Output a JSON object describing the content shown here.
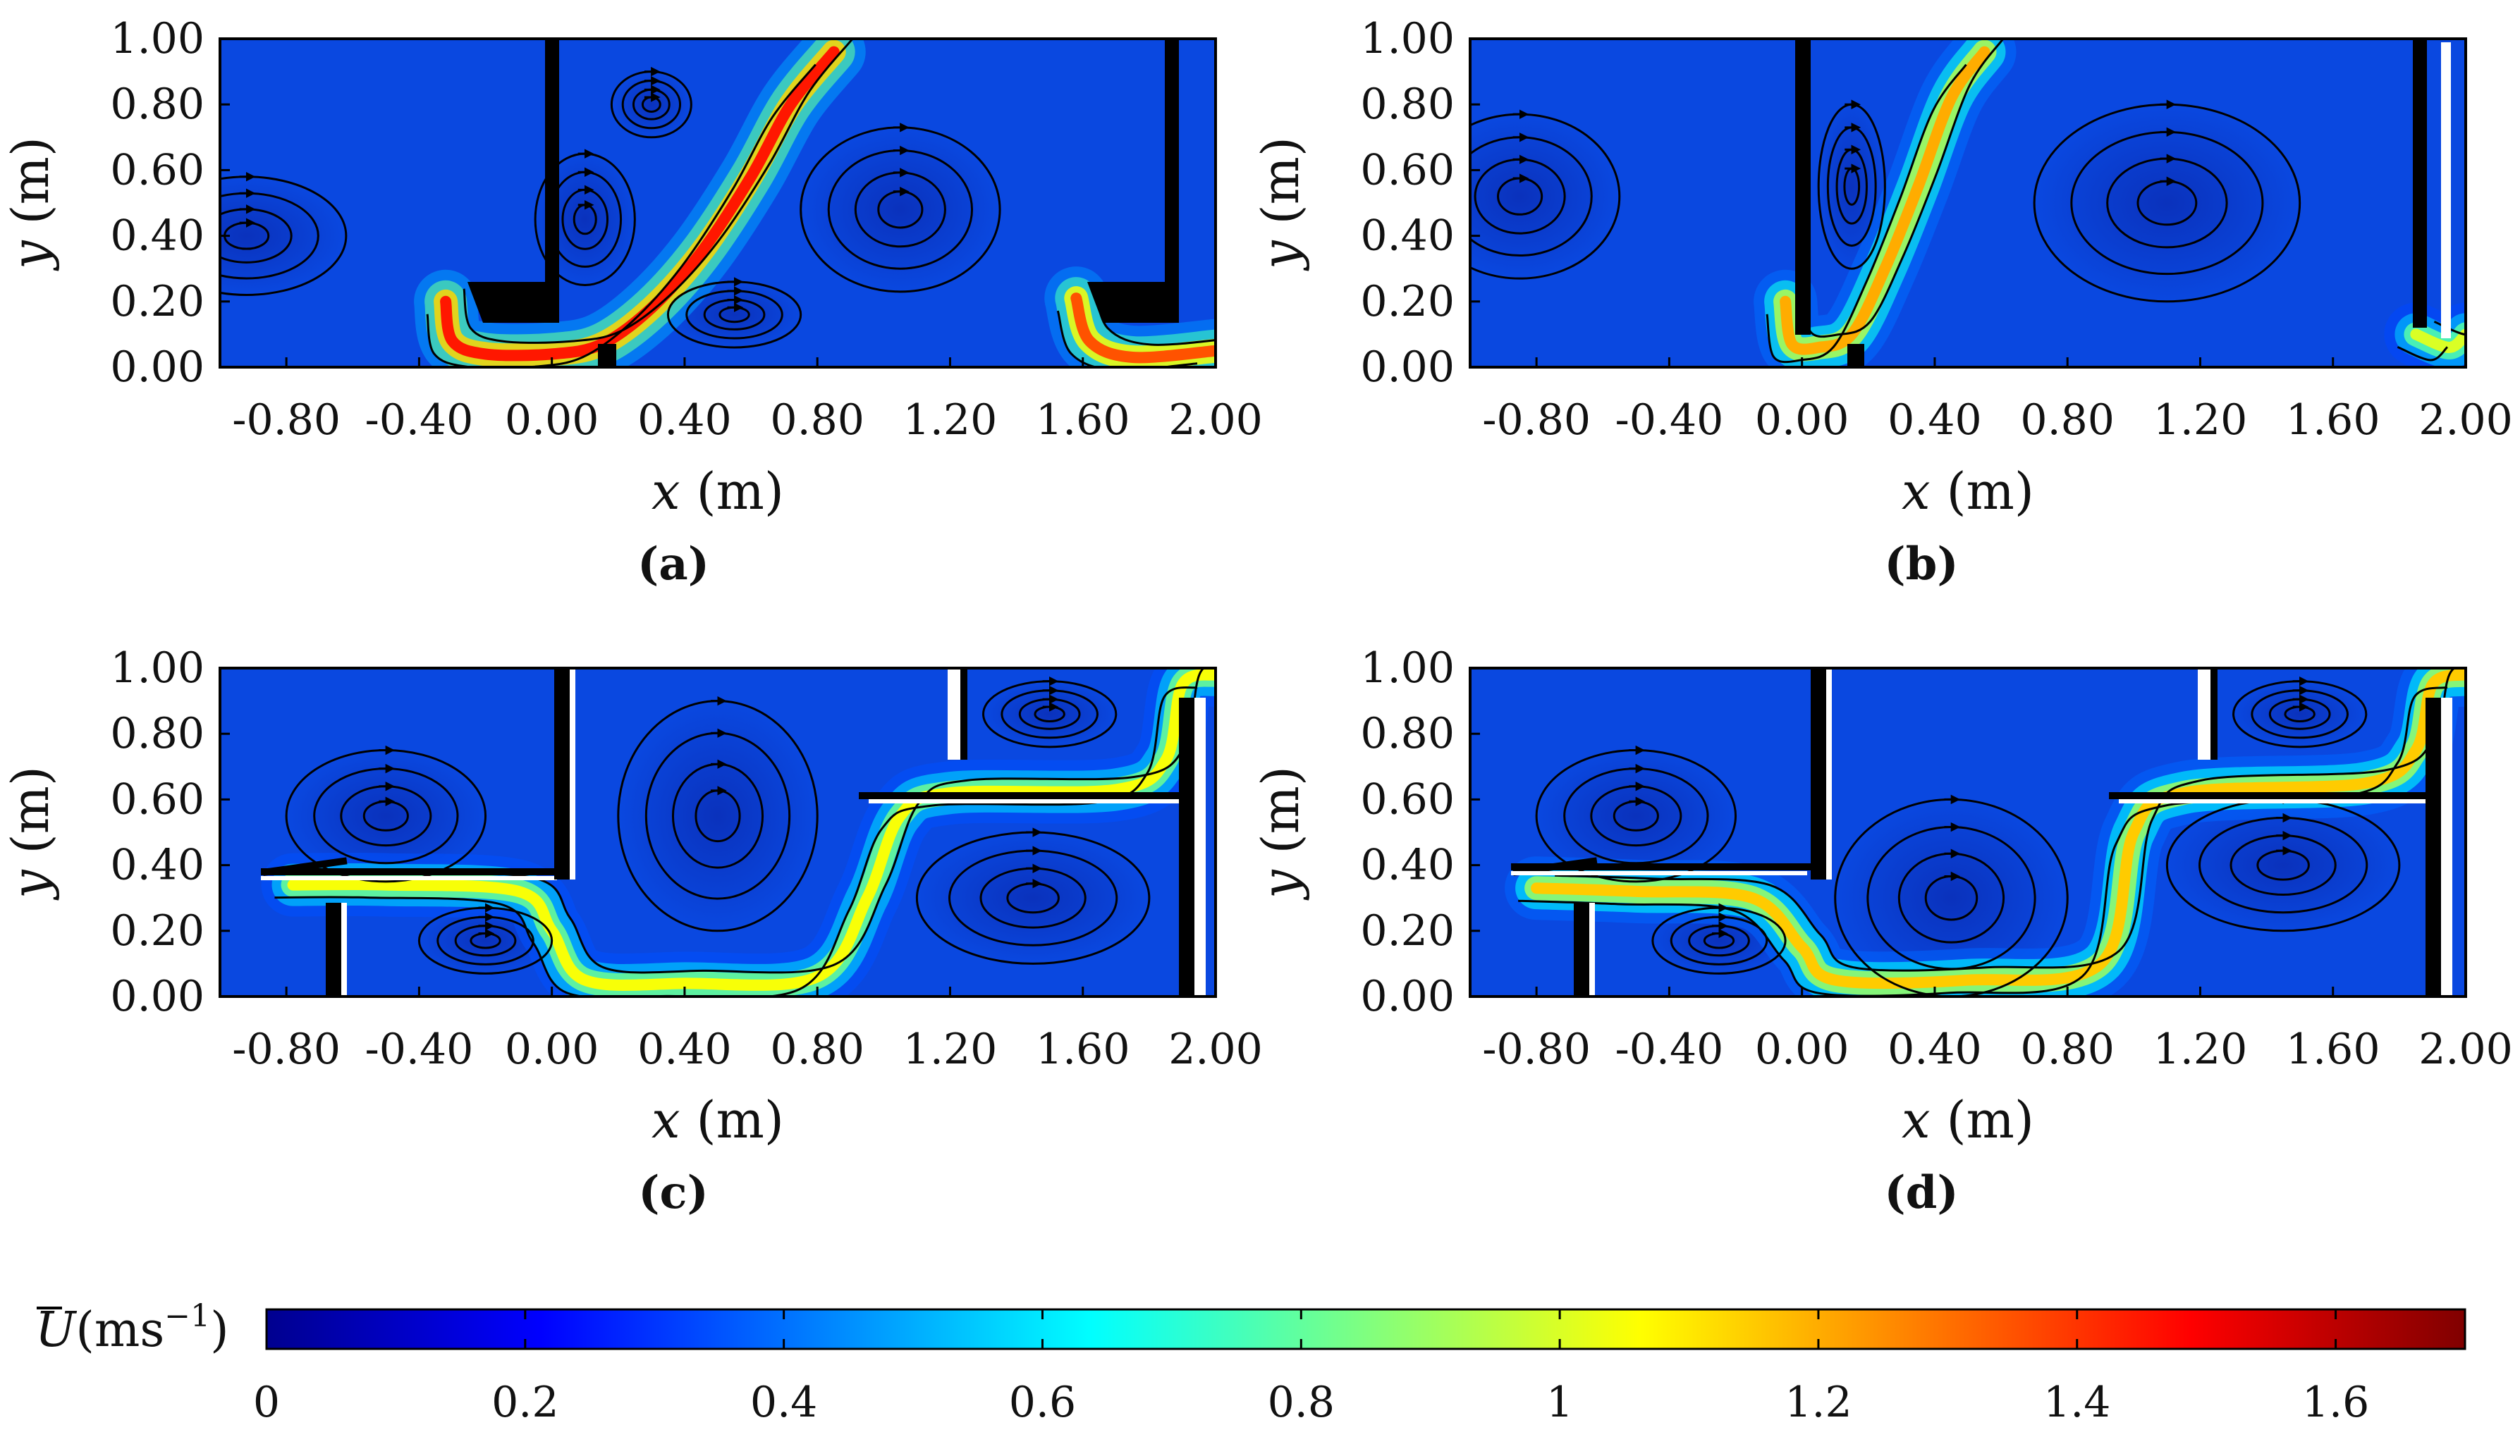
{
  "chart_data": {
    "type": "streamline_velocity_field",
    "panels": [
      {
        "label": "(a)",
        "xlabel_var": "x",
        "xlabel_unit": " (m)",
        "ylabel_var": "y",
        "ylabel_unit": " (m)",
        "xlim": [
          -1.0,
          2.0
        ],
        "ylim": [
          0.0,
          1.0
        ],
        "xticks": [
          "-0.80",
          "-0.40",
          "0.00",
          "0.40",
          "0.80",
          "1.20",
          "1.60",
          "2.00"
        ],
        "xtick_values": [
          -0.8,
          -0.4,
          0.0,
          0.4,
          0.8,
          1.2,
          1.6,
          2.0
        ],
        "yticks": [
          "0.00",
          "0.20",
          "0.40",
          "0.60",
          "0.80",
          "1.00"
        ],
        "ytick_values": [
          0.0,
          0.2,
          0.4,
          0.6,
          0.8,
          1.0
        ],
        "jets": [
          {
            "pts": [
              [
                -0.32,
                0.2
              ],
              [
                -0.3,
                0.08
              ],
              [
                -0.2,
                0.04
              ],
              [
                0.0,
                0.04
              ],
              [
                0.15,
                0.07
              ],
              [
                0.3,
                0.18
              ],
              [
                0.45,
                0.35
              ],
              [
                0.6,
                0.58
              ],
              [
                0.72,
                0.8
              ],
              [
                0.85,
                0.96
              ]
            ],
            "speed": 1.45
          },
          {
            "pts": [
              [
                1.58,
                0.21
              ],
              [
                1.62,
                0.08
              ],
              [
                1.75,
                0.03
              ],
              [
                2.0,
                0.05
              ]
            ],
            "speed": 1.35
          }
        ],
        "vortices": [
          [
            -0.92,
            0.4,
            0.3,
            0.18
          ],
          [
            0.3,
            0.8,
            0.12,
            0.1
          ],
          [
            1.05,
            0.48,
            0.3,
            0.25
          ],
          [
            0.1,
            0.45,
            0.15,
            0.2
          ],
          [
            0.55,
            0.16,
            0.2,
            0.1
          ]
        ]
      },
      {
        "label": "(b)",
        "xlabel_var": "x",
        "xlabel_unit": " (m)",
        "ylabel_var": "y",
        "ylabel_unit": " (m)",
        "xlim": [
          -1.0,
          2.0
        ],
        "ylim": [
          0.0,
          1.0
        ],
        "xticks": [
          "-0.80",
          "-0.40",
          "0.00",
          "0.40",
          "0.80",
          "1.20",
          "1.60",
          "2.00"
        ],
        "xtick_values": [
          -0.8,
          -0.4,
          0.0,
          0.4,
          0.8,
          1.2,
          1.6,
          2.0
        ],
        "yticks": [
          "0.00",
          "0.20",
          "0.40",
          "0.60",
          "0.80",
          "1.00"
        ],
        "ytick_values": [
          0.0,
          0.2,
          0.4,
          0.6,
          0.8,
          1.0
        ],
        "jets": [
          {
            "pts": [
              [
                -0.05,
                0.2
              ],
              [
                -0.03,
                0.07
              ],
              [
                0.05,
                0.06
              ],
              [
                0.15,
                0.1
              ],
              [
                0.25,
                0.3
              ],
              [
                0.35,
                0.55
              ],
              [
                0.45,
                0.82
              ],
              [
                0.55,
                0.96
              ]
            ],
            "speed": 1.2
          },
          {
            "pts": [
              [
                1.85,
                0.1
              ],
              [
                1.95,
                0.06
              ],
              [
                2.0,
                0.1
              ]
            ],
            "speed": 1.0
          }
        ],
        "vortices": [
          [
            -0.85,
            0.52,
            0.3,
            0.25
          ],
          [
            1.1,
            0.5,
            0.4,
            0.3
          ],
          [
            0.15,
            0.55,
            0.1,
            0.25
          ]
        ]
      },
      {
        "label": "(c)",
        "xlabel_var": "x",
        "xlabel_unit": " (m)",
        "ylabel_var": "y",
        "ylabel_unit": " (m)",
        "xlim": [
          -1.0,
          2.0
        ],
        "ylim": [
          0.0,
          1.0
        ],
        "xticks": [
          "-0.80",
          "-0.40",
          "0.00",
          "0.40",
          "0.80",
          "1.20",
          "1.60",
          "2.00"
        ],
        "xtick_values": [
          -0.8,
          -0.4,
          0.0,
          0.4,
          0.8,
          1.2,
          1.6,
          2.0
        ],
        "yticks": [
          "0.00",
          "0.20",
          "0.40",
          "0.60",
          "0.80",
          "1.00"
        ],
        "ytick_values": [
          0.0,
          0.2,
          0.4,
          0.6,
          0.8,
          1.0
        ],
        "jets": [
          {
            "pts": [
              [
                -0.78,
                0.34
              ],
              [
                -0.5,
                0.34
              ],
              [
                -0.1,
                0.32
              ],
              [
                0.0,
                0.2
              ],
              [
                0.1,
                0.05
              ],
              [
                0.4,
                0.04
              ],
              [
                0.8,
                0.06
              ],
              [
                0.95,
                0.3
              ],
              [
                1.05,
                0.55
              ],
              [
                1.2,
                0.62
              ],
              [
                1.7,
                0.63
              ],
              [
                1.85,
                0.72
              ],
              [
                1.9,
                0.95
              ],
              [
                2.0,
                0.98
              ]
            ],
            "speed": 1.05
          }
        ],
        "vortices": [
          [
            -0.5,
            0.55,
            0.3,
            0.2
          ],
          [
            -0.2,
            0.17,
            0.2,
            0.1
          ],
          [
            0.5,
            0.55,
            0.3,
            0.35
          ],
          [
            1.45,
            0.3,
            0.35,
            0.2
          ],
          [
            1.5,
            0.86,
            0.2,
            0.1
          ]
        ]
      },
      {
        "label": "(d)",
        "xlabel_var": "x",
        "xlabel_unit": " (m)",
        "ylabel_var": "y",
        "ylabel_unit": " (m)",
        "xlim": [
          -1.0,
          2.0
        ],
        "ylim": [
          0.0,
          1.0
        ],
        "xticks": [
          "-0.80",
          "-0.40",
          "0.00",
          "0.40",
          "0.80",
          "1.20",
          "1.60",
          "2.00"
        ],
        "xtick_values": [
          -0.8,
          -0.4,
          0.0,
          0.4,
          0.8,
          1.2,
          1.6,
          2.0
        ],
        "yticks": [
          "0.00",
          "0.20",
          "0.40",
          "0.60",
          "0.80",
          "1.00"
        ],
        "ytick_values": [
          0.0,
          0.2,
          0.4,
          0.6,
          0.8,
          1.0
        ],
        "jets": [
          {
            "pts": [
              [
                -0.8,
                0.33
              ],
              [
                -0.5,
                0.32
              ],
              [
                -0.15,
                0.3
              ],
              [
                0.0,
                0.15
              ],
              [
                0.1,
                0.05
              ],
              [
                0.5,
                0.05
              ],
              [
                0.9,
                0.1
              ],
              [
                1.0,
                0.5
              ],
              [
                1.15,
                0.62
              ],
              [
                1.7,
                0.65
              ],
              [
                1.85,
                0.75
              ],
              [
                1.9,
                0.95
              ],
              [
                2.0,
                0.98
              ]
            ],
            "speed": 1.15
          }
        ],
        "vortices": [
          [
            -0.5,
            0.55,
            0.3,
            0.2
          ],
          [
            -0.25,
            0.17,
            0.2,
            0.1
          ],
          [
            0.45,
            0.3,
            0.35,
            0.3
          ],
          [
            1.45,
            0.4,
            0.35,
            0.2
          ],
          [
            1.5,
            0.86,
            0.2,
            0.1
          ]
        ]
      }
    ],
    "colorbar": {
      "label_var": "U",
      "label_unit": "(ms",
      "label_exp": "−1",
      "label_close": ")",
      "range": [
        0,
        1.7
      ],
      "ticks": [
        "0",
        "0.2",
        "0.4",
        "0.6",
        "0.8",
        "1",
        "1.2",
        "1.4",
        "1.6"
      ],
      "tick_values": [
        0,
        0.2,
        0.4,
        0.6,
        0.8,
        1.0,
        1.2,
        1.4,
        1.6
      ],
      "colormap": "jet"
    },
    "colors": {
      "jet_low": "#00008f",
      "jet_mid": "#00ffff",
      "jet_high": "#800000",
      "field_base": "#0a48e0"
    }
  }
}
